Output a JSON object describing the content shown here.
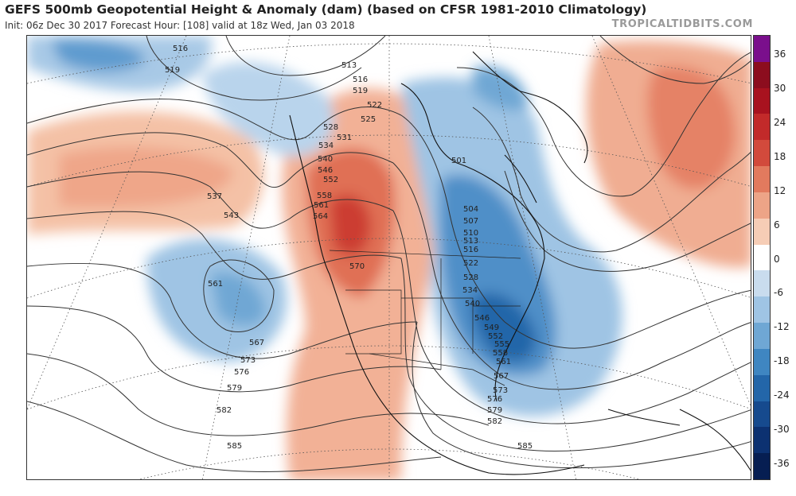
{
  "header": {
    "title": "GEFS 500mb Geopotential Height & Anomaly (dam) (based on CFSR 1981-2010 Climatology)",
    "subtitle": "Init: 06z Dec 30 2017   Forecast Hour: [108]   valid at 18z Wed, Jan 03 2018",
    "brand": "TROPICALTIDBITS.COM"
  },
  "colorbar": {
    "ticks": [
      "36",
      "30",
      "24",
      "18",
      "12",
      "6",
      "0",
      "-6",
      "-12",
      "-18",
      "-24",
      "-30",
      "-36"
    ],
    "colors": [
      "#7a0f8c",
      "#8c0d1e",
      "#a8121f",
      "#c22a2a",
      "#d24a3c",
      "#e27a5e",
      "#eda487",
      "#f6cdb6",
      "#ffffff",
      "#c9dcee",
      "#9fc4e4",
      "#6fa7d4",
      "#3f86c1",
      "#2366a9",
      "#164a8e",
      "#0c3171",
      "#061e52"
    ]
  },
  "map": {
    "contour_labels": [
      {
        "text": "516"
      },
      {
        "text": "519"
      },
      {
        "text": "513"
      },
      {
        "text": "516"
      },
      {
        "text": "519"
      },
      {
        "text": "522"
      },
      {
        "text": "525"
      },
      {
        "text": "528"
      },
      {
        "text": "531"
      },
      {
        "text": "534"
      },
      {
        "text": "537"
      },
      {
        "text": "540"
      },
      {
        "text": "543"
      },
      {
        "text": "546"
      },
      {
        "text": "552"
      },
      {
        "text": "558"
      },
      {
        "text": "561"
      },
      {
        "text": "564"
      },
      {
        "text": "570"
      },
      {
        "text": "561"
      },
      {
        "text": "567"
      },
      {
        "text": "573"
      },
      {
        "text": "576"
      },
      {
        "text": "579"
      },
      {
        "text": "582"
      },
      {
        "text": "585"
      },
      {
        "text": "501"
      },
      {
        "text": "504"
      },
      {
        "text": "507"
      },
      {
        "text": "510"
      },
      {
        "text": "513"
      },
      {
        "text": "516"
      },
      {
        "text": "522"
      },
      {
        "text": "528"
      },
      {
        "text": "534"
      },
      {
        "text": "540"
      },
      {
        "text": "546"
      },
      {
        "text": "549"
      },
      {
        "text": "552"
      },
      {
        "text": "555"
      },
      {
        "text": "558"
      },
      {
        "text": "561"
      },
      {
        "text": "567"
      },
      {
        "text": "573"
      },
      {
        "text": "576"
      },
      {
        "text": "579"
      },
      {
        "text": "582"
      },
      {
        "text": "585"
      }
    ]
  }
}
